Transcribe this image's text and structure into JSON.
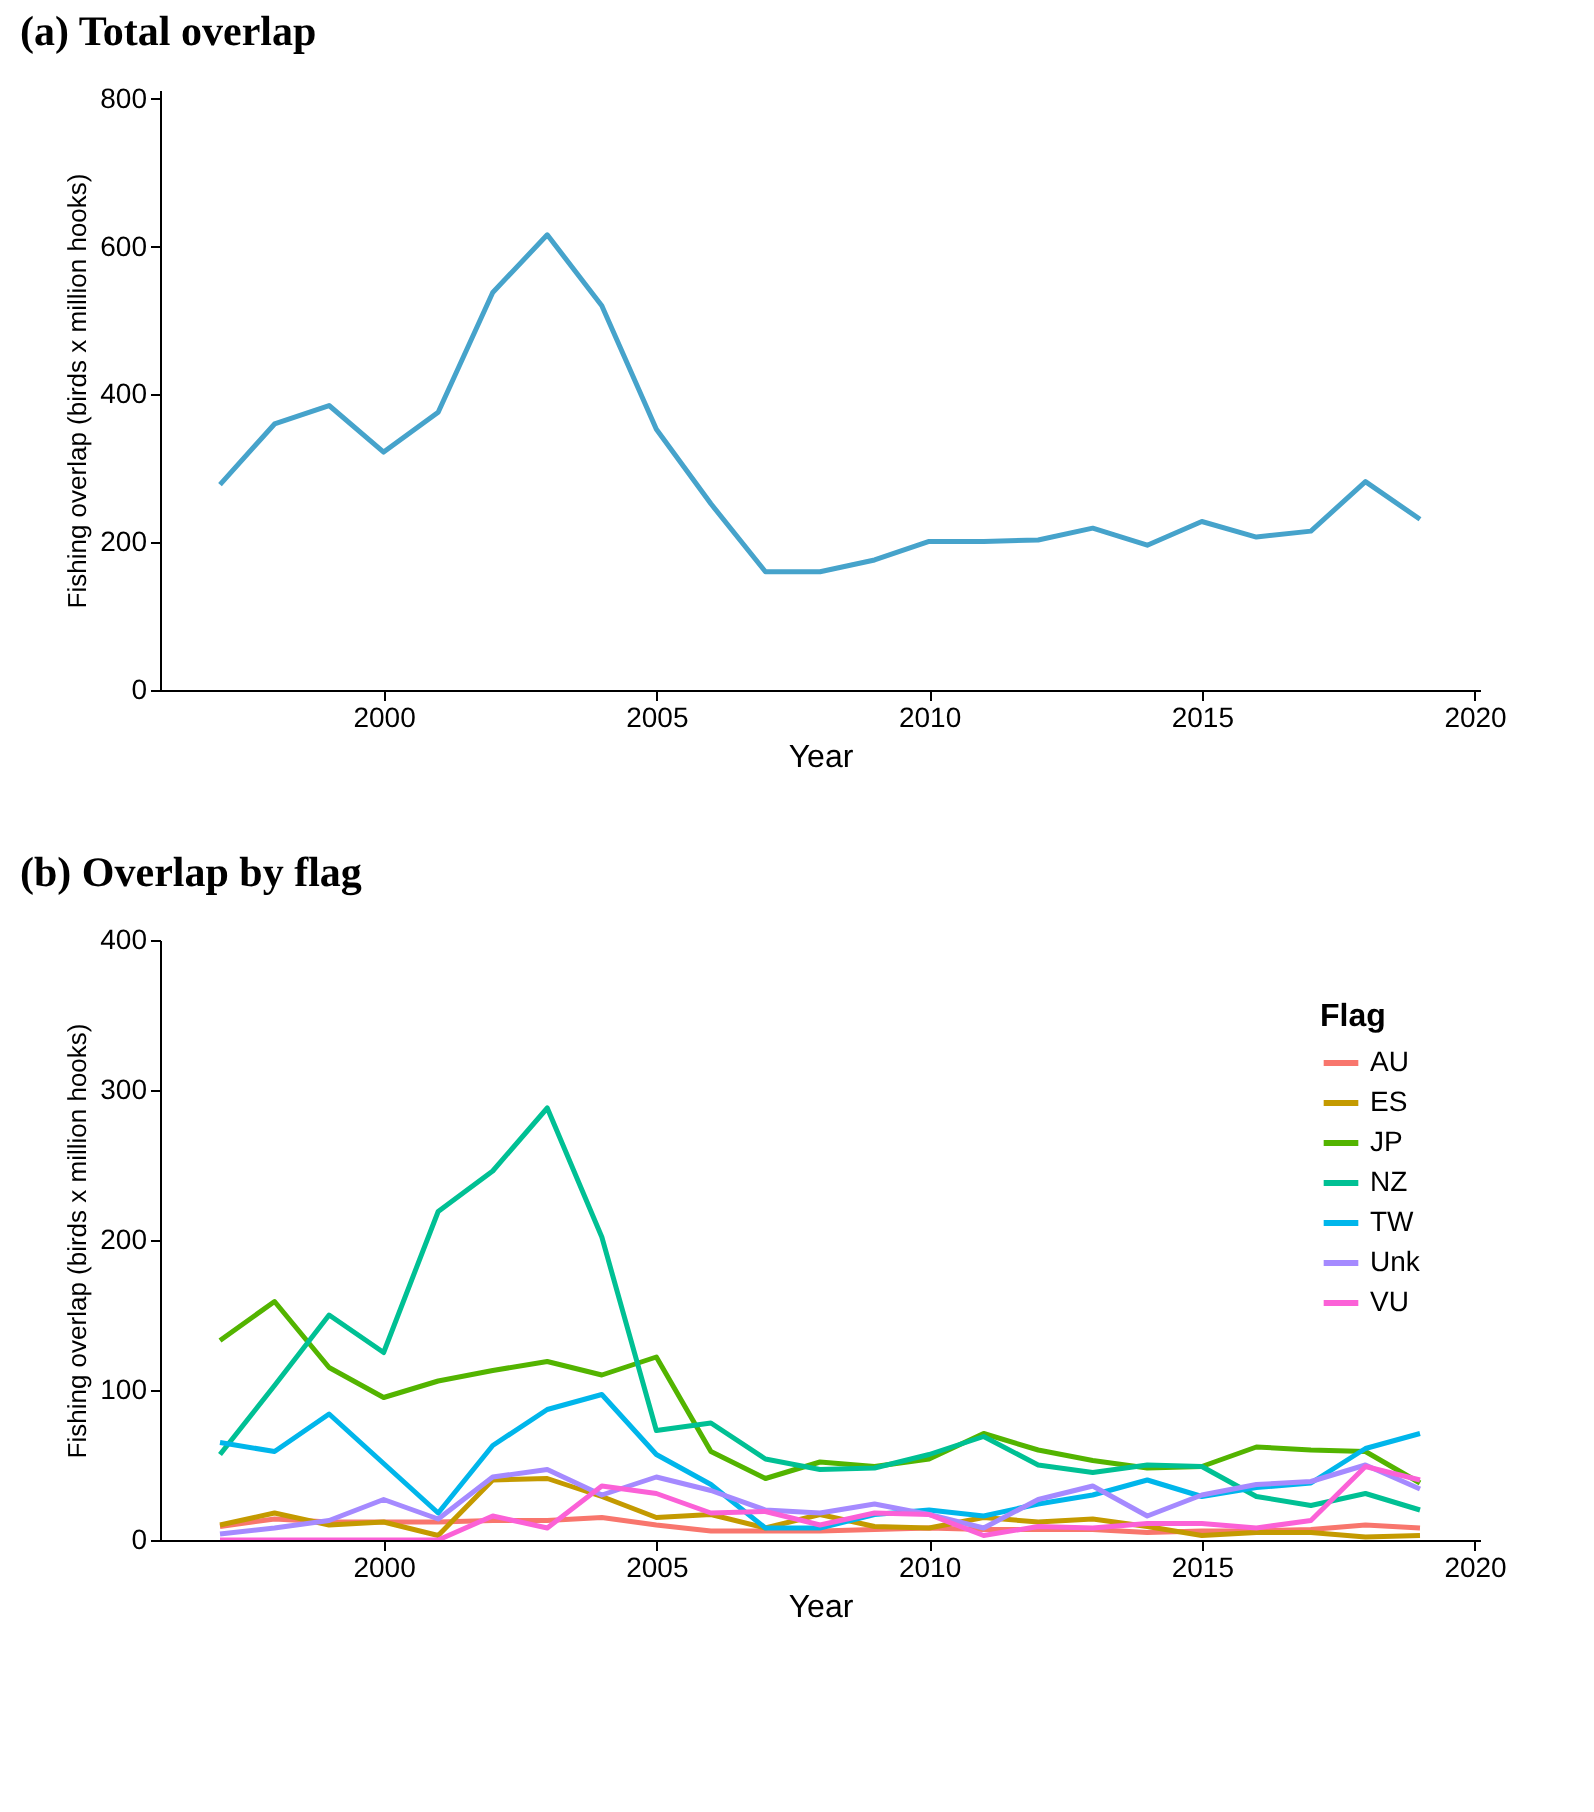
{
  "chart_data": [
    {
      "type": "line",
      "title": "(a) Total overlap",
      "xlabel": "Year",
      "ylabel": "Fishing overlap (birds x million hooks)",
      "x": [
        1997,
        1998,
        1999,
        2000,
        2001,
        2002,
        2003,
        2004,
        2005,
        2006,
        2007,
        2008,
        2009,
        2010,
        2011,
        2012,
        2013,
        2014,
        2015,
        2016,
        2017,
        2018,
        2019
      ],
      "series": [
        {
          "color": "#46a3cb",
          "values": [
            278,
            360,
            385,
            322,
            376,
            538,
            616,
            520,
            353,
            252,
            160,
            160,
            176,
            201,
            201,
            203,
            219,
            196,
            228,
            207,
            215,
            282,
            231
          ]
        }
      ],
      "xlim": [
        1995.9,
        2020.1
      ],
      "xticks": [
        2000,
        2005,
        2010,
        2015,
        2020
      ],
      "ylim": [
        0,
        812
      ],
      "yticks": [
        0,
        200,
        400,
        600,
        800
      ],
      "grid": false,
      "legend": false
    },
    {
      "type": "line",
      "title": "(b) Overlap by flag",
      "xlabel": "Year",
      "ylabel": "Fishing overlap (birds x million hooks)",
      "legend_title": "Flag",
      "x": [
        1997,
        1998,
        1999,
        2000,
        2001,
        2002,
        2003,
        2004,
        2005,
        2006,
        2007,
        2008,
        2009,
        2010,
        2011,
        2012,
        2013,
        2014,
        2015,
        2016,
        2017,
        2018,
        2019
      ],
      "series": [
        {
          "name": "AU",
          "color": "#f8766d",
          "values": [
            9,
            14,
            12,
            12,
            12,
            13,
            13,
            15,
            10,
            6,
            6,
            6,
            7,
            8,
            7,
            7,
            7,
            5,
            6,
            6,
            7,
            10,
            8
          ]
        },
        {
          "name": "ES",
          "color": "#c49a00",
          "values": [
            10,
            18,
            10,
            12,
            3,
            40,
            41,
            29,
            15,
            17,
            8,
            17,
            9,
            8,
            15,
            12,
            14,
            9,
            3,
            5,
            5,
            2,
            3
          ]
        },
        {
          "name": "JP",
          "color": "#53b400",
          "values": [
            133,
            159,
            115,
            95,
            106,
            113,
            119,
            110,
            122,
            59,
            41,
            52,
            49,
            54,
            71,
            60,
            53,
            48,
            49,
            62,
            60,
            59,
            38
          ]
        },
        {
          "name": "NZ",
          "color": "#00c094",
          "values": [
            57,
            103,
            150,
            125,
            219,
            246,
            288,
            202,
            73,
            78,
            54,
            47,
            48,
            57,
            69,
            50,
            45,
            50,
            49,
            29,
            23,
            31,
            20
          ]
        },
        {
          "name": "TW",
          "color": "#00b6eb",
          "values": [
            65,
            59,
            84,
            51,
            18,
            63,
            87,
            97,
            57,
            37,
            8,
            8,
            17,
            20,
            16,
            24,
            30,
            40,
            29,
            35,
            38,
            61,
            71
          ]
        },
        {
          "name": "Unk",
          "color": "#a58aff",
          "values": [
            4,
            8,
            13,
            27,
            14,
            42,
            47,
            30,
            42,
            33,
            20,
            18,
            24,
            17,
            8,
            27,
            36,
            16,
            30,
            37,
            39,
            50,
            34
          ]
        },
        {
          "name": "VU",
          "color": "#fb61d7",
          "values": [
            0,
            0,
            0,
            0,
            0,
            16,
            8,
            36,
            31,
            18,
            19,
            10,
            18,
            17,
            3,
            9,
            8,
            11,
            11,
            8,
            13,
            49,
            40
          ]
        }
      ],
      "xlim": [
        1995.9,
        2020.1
      ],
      "xticks": [
        2000,
        2005,
        2010,
        2015,
        2020
      ],
      "ylim": [
        0,
        400
      ],
      "yticks": [
        0,
        100,
        200,
        300,
        400
      ],
      "grid": false,
      "legend": "top right"
    }
  ]
}
